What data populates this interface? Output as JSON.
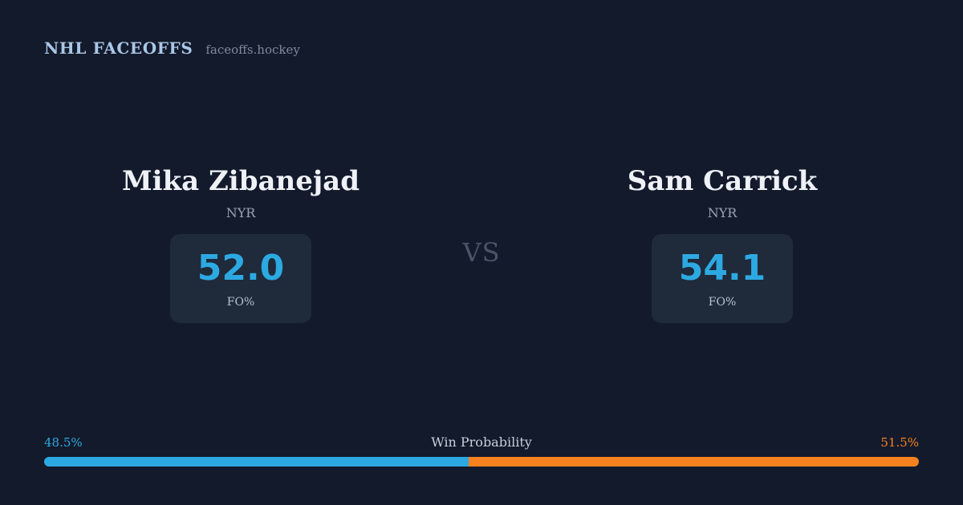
{
  "header": {
    "title": "NHL FACEOFFS",
    "subtitle": "faceoffs.hockey"
  },
  "matchup": {
    "vs_label": "VS",
    "left": {
      "name": "Mika Zibanejad",
      "team": "NYR",
      "stat_value": "52.0",
      "stat_label": "FO%"
    },
    "right": {
      "name": "Sam Carrick",
      "team": "NYR",
      "stat_value": "54.1",
      "stat_label": "FO%"
    }
  },
  "win_probability": {
    "label": "Win Probability",
    "left_pct": "48.5%",
    "right_pct": "51.5%",
    "left_value": 48.5,
    "right_value": 51.5
  },
  "colors": {
    "background": "#131a2b",
    "card_background": "#1f2a3b",
    "accent_blue": "#2da9e2",
    "accent_orange": "#f5821f",
    "brand_blue": "#a9c7e6"
  },
  "chart_data": {
    "type": "bar",
    "title": "Win Probability",
    "stacked": true,
    "xlim": [
      0,
      100
    ],
    "series": [
      {
        "name": "Mika Zibanejad",
        "values": [
          48.5
        ],
        "color": "#2da9e2"
      },
      {
        "name": "Sam Carrick",
        "values": [
          51.5
        ],
        "color": "#f5821f"
      }
    ],
    "related_stats": [
      {
        "player": "Mika Zibanejad",
        "team": "NYR",
        "faceoff_pct": 52.0
      },
      {
        "player": "Sam Carrick",
        "team": "NYR",
        "faceoff_pct": 54.1
      }
    ]
  }
}
